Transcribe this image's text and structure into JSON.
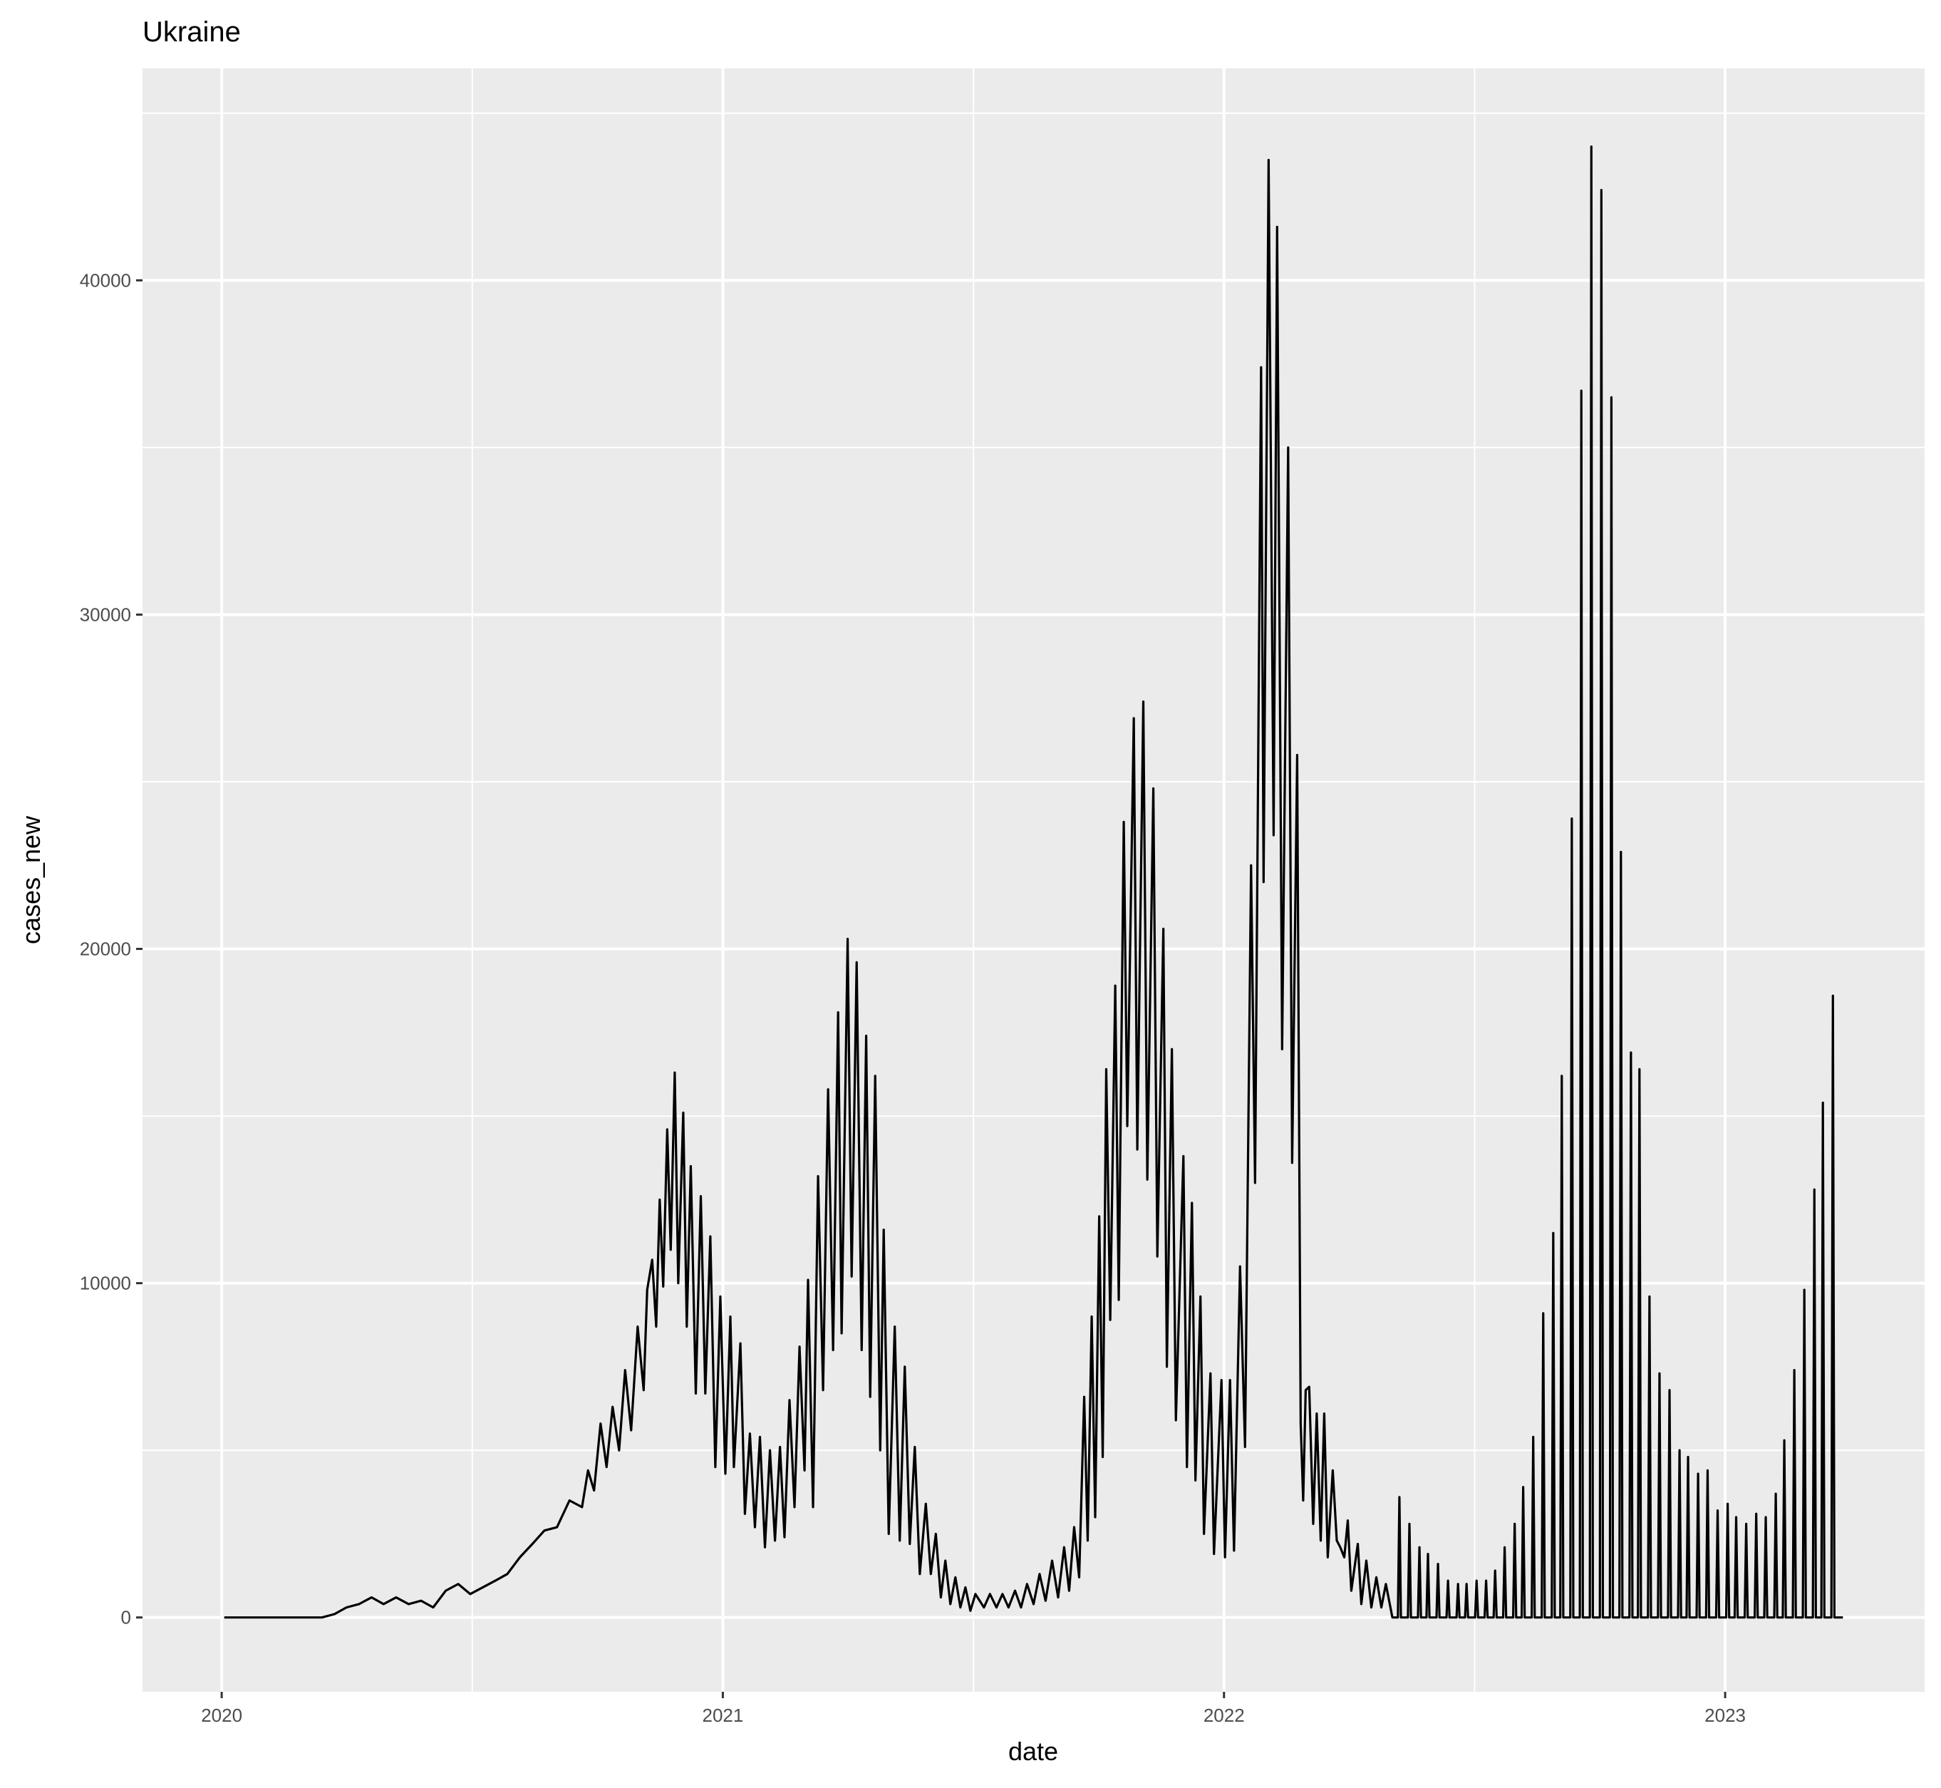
{
  "chart_data": {
    "type": "line",
    "title": "Ukraine",
    "x_label": "date",
    "y_label": "cases_new",
    "xlim": [
      2019.842,
      2023.398
    ],
    "ylim": [
      -2224,
      46340
    ],
    "xticks": [
      2020,
      2021,
      2022,
      2023
    ],
    "yticks": [
      0,
      10000,
      20000,
      30000,
      40000
    ],
    "grid": true,
    "series": [
      {
        "color": "#000000",
        "x": [
          2020.005,
          2020.2,
          2020.225,
          2020.249,
          2020.274,
          2020.299,
          2020.323,
          2020.348,
          2020.373,
          2020.398,
          2020.422,
          2020.447,
          2020.472,
          2020.496,
          2020.521,
          2020.546,
          2020.57,
          2020.595,
          2020.62,
          2020.644,
          2020.669,
          2020.694,
          2020.719,
          2020.731,
          2020.743,
          2020.756,
          2020.768,
          2020.78,
          2020.793,
          2020.805,
          2020.817,
          2020.83,
          2020.842,
          2020.849,
          2020.859,
          2020.867,
          2020.874,
          2020.881,
          2020.889,
          2020.896,
          2020.904,
          2020.911,
          2020.921,
          2020.928,
          2020.936,
          2020.946,
          2020.956,
          2020.965,
          2020.975,
          2020.985,
          2020.995,
          2021.005,
          2021.015,
          2021.022,
          2021.035,
          2021.044,
          2021.054,
          2021.064,
          2021.074,
          2021.084,
          2021.094,
          2021.104,
          2021.114,
          2021.123,
          2021.133,
          2021.143,
          2021.153,
          2021.163,
          2021.17,
          2021.18,
          2021.19,
          2021.2,
          2021.21,
          2021.22,
          2021.23,
          2021.237,
          2021.249,
          2021.257,
          2021.267,
          2021.277,
          2021.286,
          2021.294,
          2021.304,
          2021.314,
          2021.321,
          2021.331,
          2021.343,
          2021.353,
          2021.363,
          2021.373,
          2021.383,
          2021.393,
          2021.405,
          2021.415,
          2021.425,
          2021.435,
          2021.444,
          2021.454,
          2021.464,
          2021.474,
          2021.484,
          2021.494,
          2021.504,
          2021.521,
          2021.533,
          2021.546,
          2021.558,
          2021.57,
          2021.583,
          2021.595,
          2021.607,
          2021.62,
          2021.632,
          2021.644,
          2021.657,
          2021.669,
          2021.681,
          2021.691,
          2021.701,
          2021.711,
          2021.721,
          2021.728,
          2021.736,
          2021.743,
          2021.751,
          2021.758,
          2021.765,
          2021.773,
          2021.783,
          2021.79,
          2021.8,
          2021.807,
          2021.82,
          2021.827,
          2021.839,
          2021.847,
          2021.859,
          2021.867,
          2021.879,
          2021.886,
          2021.896,
          2021.904,
          2021.919,
          2021.926,
          2021.936,
          2021.943,
          2021.953,
          2021.96,
          2021.973,
          2021.98,
          2021.995,
          2022.002,
          2022.012,
          2022.02,
          2022.032,
          2022.042,
          2022.054,
          2022.062,
          2022.074,
          2022.079,
          2022.089,
          2022.099,
          2022.106,
          2022.116,
          2022.128,
          2022.136,
          2022.146,
          2022.153,
          2022.158,
          2022.163,
          2022.17,
          2022.178,
          2022.185,
          2022.193,
          2022.2,
          2022.207,
          2022.217,
          2022.225,
          2022.232,
          2022.24,
          2022.247,
          2022.254,
          2022.267,
          2022.274,
          2022.284,
          2022.294,
          2022.304,
          2022.314,
          2022.323,
          2022.336,
          2022.347,
          2022.35,
          2022.353,
          2022.367,
          2022.37,
          2022.373,
          2022.387,
          2022.39,
          2022.393,
          2022.404,
          2022.407,
          2022.41,
          2022.424,
          2022.427,
          2022.43,
          2022.444,
          2022.447,
          2022.45,
          2022.464,
          2022.467,
          2022.47,
          2022.481,
          2022.484,
          2022.487,
          2022.501,
          2022.504,
          2022.507,
          2022.52,
          2022.523,
          2022.526,
          2022.538,
          2022.541,
          2022.544,
          2022.557,
          2022.56,
          2022.563,
          2022.577,
          2022.58,
          2022.583,
          2022.594,
          2022.597,
          2022.6,
          2022.614,
          2022.617,
          2022.62,
          2022.634,
          2022.637,
          2022.64,
          2022.654,
          2022.657,
          2022.66,
          2022.671,
          2022.674,
          2022.677,
          2022.691,
          2022.694,
          2022.697,
          2022.71,
          2022.713,
          2022.716,
          2022.73,
          2022.733,
          2022.736,
          2022.75,
          2022.753,
          2022.756,
          2022.77,
          2022.773,
          2022.776,
          2022.789,
          2022.792,
          2022.795,
          2022.809,
          2022.812,
          2022.815,
          2022.826,
          2022.829,
          2022.832,
          2022.846,
          2022.849,
          2022.852,
          2022.866,
          2022.869,
          2022.872,
          2022.886,
          2022.889,
          2022.892,
          2022.906,
          2022.909,
          2022.912,
          2022.923,
          2022.926,
          2022.929,
          2022.943,
          2022.946,
          2022.949,
          2022.962,
          2022.965,
          2022.968,
          2022.982,
          2022.985,
          2022.988,
          2023.002,
          2023.005,
          2023.008,
          2023.019,
          2023.022,
          2023.025,
          2023.039,
          2023.042,
          2023.045,
          2023.059,
          2023.062,
          2023.065,
          2023.078,
          2023.081,
          2023.084,
          2023.098,
          2023.101,
          2023.104,
          2023.115,
          2023.118,
          2023.121,
          2023.135,
          2023.138,
          2023.141,
          2023.155,
          2023.158,
          2023.161,
          2023.175,
          2023.178,
          2023.181,
          2023.192,
          2023.195,
          2023.198,
          2023.212,
          2023.215,
          2023.218,
          2023.235
        ],
        "values": [
          0,
          0,
          100,
          300,
          400,
          600,
          400,
          600,
          400,
          500,
          300,
          800,
          1000,
          700,
          900,
          1100,
          1300,
          1800,
          2200,
          2600,
          2700,
          3500,
          3300,
          4400,
          3800,
          5800,
          4500,
          6300,
          5000,
          7400,
          5600,
          8700,
          6800,
          9800,
          10700,
          8700,
          12500,
          9900,
          14600,
          11000,
          16300,
          10000,
          15100,
          8700,
          13500,
          6700,
          12600,
          6700,
          11400,
          4500,
          9600,
          4300,
          9000,
          4500,
          8200,
          3100,
          5500,
          2700,
          5400,
          2100,
          5000,
          2300,
          5100,
          2400,
          6500,
          3300,
          8100,
          4400,
          10100,
          3300,
          13200,
          6800,
          15800,
          8000,
          18100,
          8500,
          20300,
          10200,
          19600,
          8000,
          17400,
          6600,
          16200,
          5000,
          11600,
          2500,
          8700,
          2300,
          7500,
          2200,
          5100,
          1300,
          3400,
          1300,
          2500,
          600,
          1700,
          400,
          1200,
          300,
          900,
          200,
          700,
          300,
          700,
          300,
          700,
          300,
          800,
          300,
          1000,
          400,
          1300,
          500,
          1700,
          600,
          2100,
          800,
          2700,
          1200,
          6600,
          2300,
          9000,
          3000,
          12000,
          4800,
          16400,
          8900,
          18900,
          9500,
          23800,
          14700,
          26900,
          14000,
          27400,
          13100,
          24800,
          10800,
          20600,
          7500,
          17000,
          5900,
          13800,
          4500,
          12400,
          4100,
          9600,
          2500,
          7300,
          1900,
          7100,
          1800,
          7100,
          2000,
          10500,
          5100,
          22500,
          13000,
          37400,
          22000,
          43600,
          23400,
          41600,
          17000,
          35000,
          13600,
          25800,
          5800,
          3500,
          6800,
          6900,
          2800,
          6100,
          2300,
          6100,
          1800,
          4400,
          2300,
          2100,
          1800,
          2900,
          800,
          2200,
          400,
          1700,
          300,
          1200,
          300,
          1000,
          0,
          0,
          3600,
          0,
          0,
          2800,
          0,
          0,
          2100,
          0,
          0,
          1900,
          0,
          0,
          1600,
          0,
          0,
          1100,
          0,
          0,
          1000,
          0,
          0,
          1000,
          0,
          0,
          1100,
          0,
          0,
          1100,
          0,
          0,
          1400,
          0,
          0,
          2100,
          0,
          0,
          2800,
          0,
          0,
          3900,
          0,
          0,
          5400,
          0,
          0,
          9100,
          0,
          0,
          11500,
          0,
          0,
          16200,
          0,
          0,
          23900,
          0,
          0,
          36700,
          0,
          0,
          44000,
          0,
          0,
          42700,
          0,
          0,
          36500,
          0,
          0,
          22900,
          0,
          0,
          16900,
          0,
          0,
          16400,
          0,
          0,
          9600,
          0,
          0,
          7300,
          0,
          0,
          6800,
          0,
          0,
          5000,
          0,
          0,
          4800,
          0,
          0,
          4300,
          0,
          0,
          4400,
          0,
          0,
          3200,
          0,
          0,
          3400,
          0,
          0,
          3000,
          0,
          0,
          2800,
          0,
          0,
          3100,
          0,
          0,
          3000,
          0,
          0,
          3700,
          0,
          0,
          5300,
          0,
          0,
          7400,
          0,
          0,
          9800,
          0,
          0,
          12800,
          0,
          0,
          15400,
          0,
          0,
          18600,
          0,
          0
        ]
      }
    ]
  }
}
